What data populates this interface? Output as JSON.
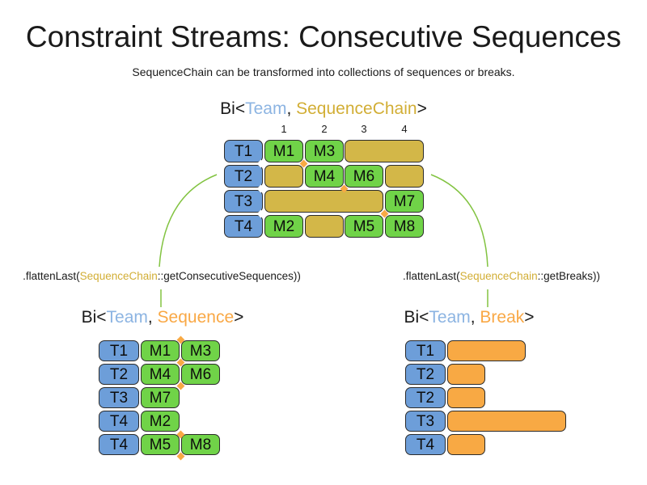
{
  "title": "Constraint Streams: Consecutive Sequences",
  "subtitle": "SequenceChain can be transformed into collections of sequences or breaks.",
  "colors": {
    "team": "#6d9ed9",
    "sequence": "#70d348",
    "chain": "#d3b748",
    "break": "#f8a944",
    "connector": "#82c341",
    "team_text": "#8cb4e2",
    "chain_text": "#d2ae35",
    "orange_text": "#f9a845",
    "black_text": "#1a1a1a"
  },
  "top_table": {
    "heading": [
      {
        "text": "Bi<",
        "color": "#1a1a1a"
      },
      {
        "text": "Team",
        "color": "#8cb4e2"
      },
      {
        "text": ", ",
        "color": "#1a1a1a"
      },
      {
        "text": "SequenceChain",
        "color": "#d2ae35"
      },
      {
        "text": ">",
        "color": "#1a1a1a"
      }
    ],
    "column_headers": [
      "1",
      "2",
      "3",
      "4"
    ],
    "rows": [
      {
        "team": "T1",
        "cells": [
          {
            "label": "M1",
            "kind": "sequence",
            "col": 0,
            "span": 1
          },
          {
            "label": "M3",
            "kind": "sequence",
            "col": 1,
            "span": 1
          },
          {
            "label": "",
            "kind": "chain",
            "col": 2,
            "span": 2
          }
        ]
      },
      {
        "team": "T2",
        "cells": [
          {
            "label": "",
            "kind": "chain",
            "col": 0,
            "span": 1
          },
          {
            "label": "M4",
            "kind": "sequence",
            "col": 1,
            "span": 1
          },
          {
            "label": "M6",
            "kind": "sequence",
            "col": 2,
            "span": 1
          },
          {
            "label": "",
            "kind": "chain",
            "col": 3,
            "span": 1
          }
        ]
      },
      {
        "team": "T3",
        "cells": [
          {
            "label": "",
            "kind": "chain",
            "col": 0,
            "span": 3
          },
          {
            "label": "M7",
            "kind": "sequence",
            "col": 3,
            "span": 1
          }
        ]
      },
      {
        "team": "T4",
        "cells": [
          {
            "label": "M2",
            "kind": "sequence",
            "col": 0,
            "span": 1
          },
          {
            "label": "",
            "kind": "chain",
            "col": 1,
            "span": 1
          },
          {
            "label": "M5",
            "kind": "sequence",
            "col": 2,
            "span": 1
          },
          {
            "label": "M8",
            "kind": "sequence",
            "col": 3,
            "span": 1
          }
        ]
      }
    ]
  },
  "left_branch": {
    "method": [
      {
        "text": ".flattenLast(",
        "color": "#1a1a1a"
      },
      {
        "text": "SequenceChain",
        "color": "#d2ae35"
      },
      {
        "text": "::getConsecutiveSequences))",
        "color": "#1a1a1a"
      }
    ],
    "heading": [
      {
        "text": "Bi<",
        "color": "#1a1a1a"
      },
      {
        "text": "Team",
        "color": "#8cb4e2"
      },
      {
        "text": ", ",
        "color": "#1a1a1a"
      },
      {
        "text": "Sequence",
        "color": "#f9a845"
      },
      {
        "text": ">",
        "color": "#1a1a1a"
      }
    ],
    "rows": [
      {
        "team": "T1",
        "cells": [
          "M1",
          "M3"
        ]
      },
      {
        "team": "T2",
        "cells": [
          "M4",
          "M6"
        ]
      },
      {
        "team": "T3",
        "cells": [
          "M7"
        ]
      },
      {
        "team": "T4",
        "cells": [
          "M2"
        ]
      },
      {
        "team": "T4",
        "cells": [
          "M5",
          "M8"
        ]
      }
    ]
  },
  "right_branch": {
    "method": [
      {
        "text": ".flattenLast(",
        "color": "#1a1a1a"
      },
      {
        "text": "SequenceChain",
        "color": "#d2ae35"
      },
      {
        "text": "::getBreaks))",
        "color": "#1a1a1a"
      }
    ],
    "heading": [
      {
        "text": "Bi<",
        "color": "#1a1a1a"
      },
      {
        "text": "Team",
        "color": "#8cb4e2"
      },
      {
        "text": ", ",
        "color": "#1a1a1a"
      },
      {
        "text": "Break",
        "color": "#f9a845"
      },
      {
        "text": ">",
        "color": "#1a1a1a"
      }
    ],
    "rows": [
      {
        "team": "T1",
        "break_units": 2
      },
      {
        "team": "T2",
        "break_units": 1
      },
      {
        "team": "T2",
        "break_units": 1
      },
      {
        "team": "T3",
        "break_units": 3
      },
      {
        "team": "T4",
        "break_units": 1
      }
    ]
  }
}
